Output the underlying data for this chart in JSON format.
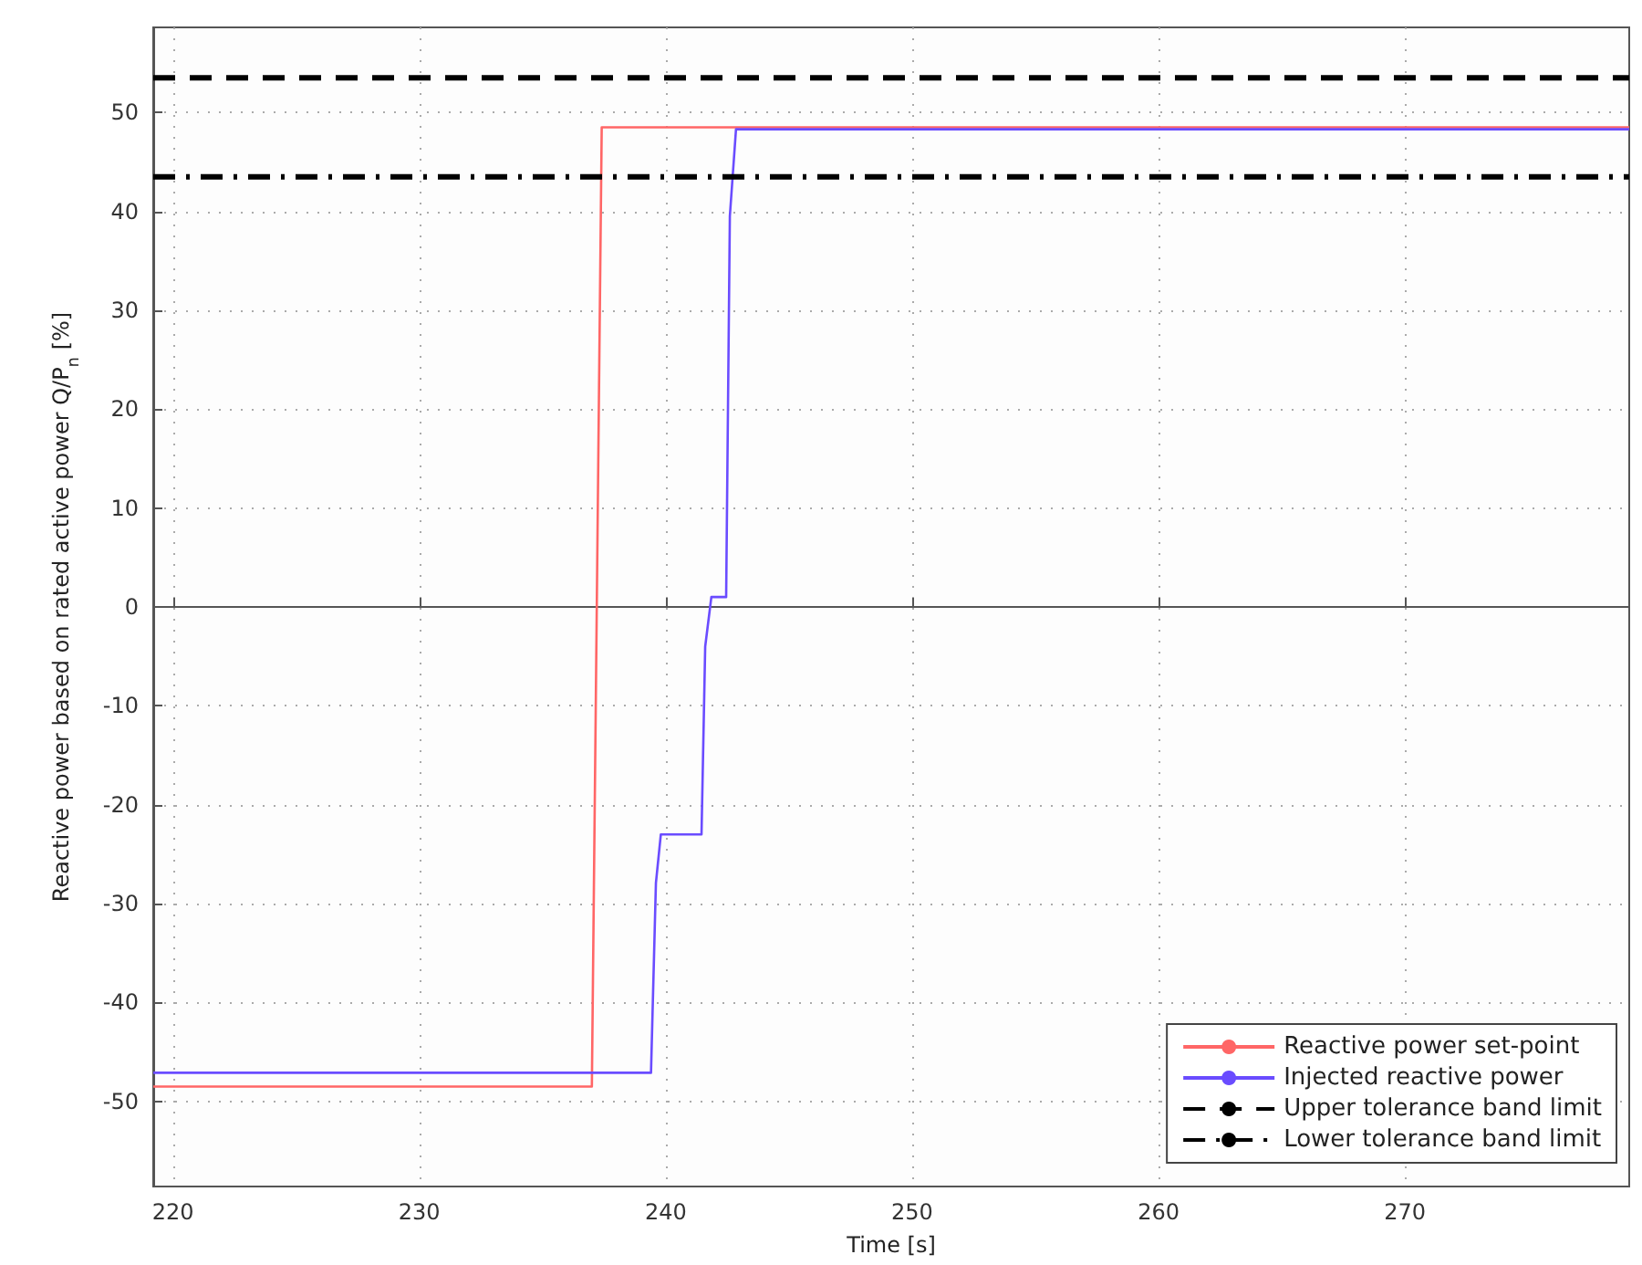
{
  "chart_data": {
    "type": "line",
    "xlabel": "Time [s]",
    "ylabel": "Reactive power based on rated active power Q/P$_{n}$ [%]",
    "xlim": [
      219.2,
      279.1
    ],
    "ylim": [
      -58.6,
      58.6
    ],
    "xticks": [
      220,
      230,
      240,
      250,
      260,
      270
    ],
    "yticks": [
      -50,
      -40,
      -30,
      -20,
      -10,
      0,
      10,
      20,
      30,
      40,
      50
    ],
    "grid": true,
    "legend": "bottom right",
    "marker": "none",
    "series": [
      {
        "name": "Reactive power set-point",
        "color": "#ff6666",
        "x": [
          219.2,
          237.0,
          237.4,
          279.1
        ],
        "values": [
          -48.5,
          -48.5,
          48.5,
          48.5
        ]
      },
      {
        "name": "Injected reactive power",
        "color": "#6a4cff",
        "x": [
          219.2,
          239.4,
          239.6,
          239.8,
          241.45,
          241.6,
          241.85,
          242.45,
          242.6,
          242.85,
          279.1
        ],
        "values": [
          -47.1,
          -47.1,
          -27.9,
          -23,
          -23,
          -4,
          1,
          1,
          39.5,
          48.3,
          48.3
        ]
      }
    ],
    "ref_lines": [
      {
        "axis": "y",
        "value": 53.5,
        "label": "Upper tolerance band limit",
        "color": "#000000",
        "line_style": "dashed"
      },
      {
        "axis": "y",
        "value": 43.5,
        "label": "Lower tolerance band limit",
        "color": "#000000",
        "line_style": "dashdot"
      }
    ]
  }
}
